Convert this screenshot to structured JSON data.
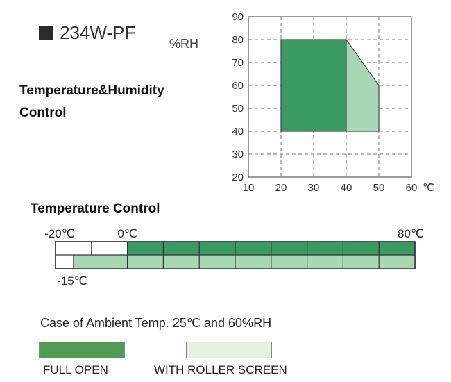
{
  "model": {
    "square_icon": "filled-square-icon",
    "label": "234W-PF"
  },
  "humidity_chart": {
    "heading_line1": "Temperature&Humidity",
    "heading_line2": "Control",
    "y_unit": "%RH"
  },
  "chart_data": [
    {
      "type": "area",
      "x_ticks": [
        "10",
        "20",
        "30",
        "40",
        "50",
        "60"
      ],
      "x_unit": "℃",
      "y_ticks": [
        "20",
        "30",
        "40",
        "50",
        "60",
        "70",
        "80",
        "90"
      ],
      "xlim": [
        10,
        60
      ],
      "ylim": [
        20,
        90
      ],
      "grid": true,
      "regions": [
        {
          "legend": "FULL OPEN",
          "color": "#3a9a62",
          "polygon": [
            [
              20,
              40
            ],
            [
              20,
              80
            ],
            [
              40,
              80
            ],
            [
              40,
              40
            ]
          ]
        },
        {
          "legend": "WITH ROLLER SCREEN",
          "color": "#a8d8b3",
          "polygon": [
            [
              40,
              40
            ],
            [
              40,
              80
            ],
            [
              50,
              60
            ],
            [
              50,
              40
            ]
          ]
        }
      ]
    },
    {
      "type": "bar",
      "title": "Temperature Control",
      "labels": [
        "-20℃",
        "0℃",
        "80℃",
        "-15℃"
      ],
      "ranges": [
        {
          "legend": "FULL OPEN",
          "color": "#3a9a62",
          "from": 0,
          "to": 80,
          "row": "upper"
        },
        {
          "legend": "WITH ROLLER SCREEN",
          "color": "#a8d8b3",
          "from": -15,
          "to": 80,
          "row": "lower"
        }
      ],
      "xlim": [
        -20,
        80
      ]
    }
  ],
  "caption": "Case of Ambient Temp. 25℃ and 60%RH",
  "legend": [
    {
      "label": "FULL OPEN",
      "color": "#4d9e54"
    },
    {
      "label": "WITH ROLLER SCREEN",
      "color": "#e4f3df"
    }
  ]
}
